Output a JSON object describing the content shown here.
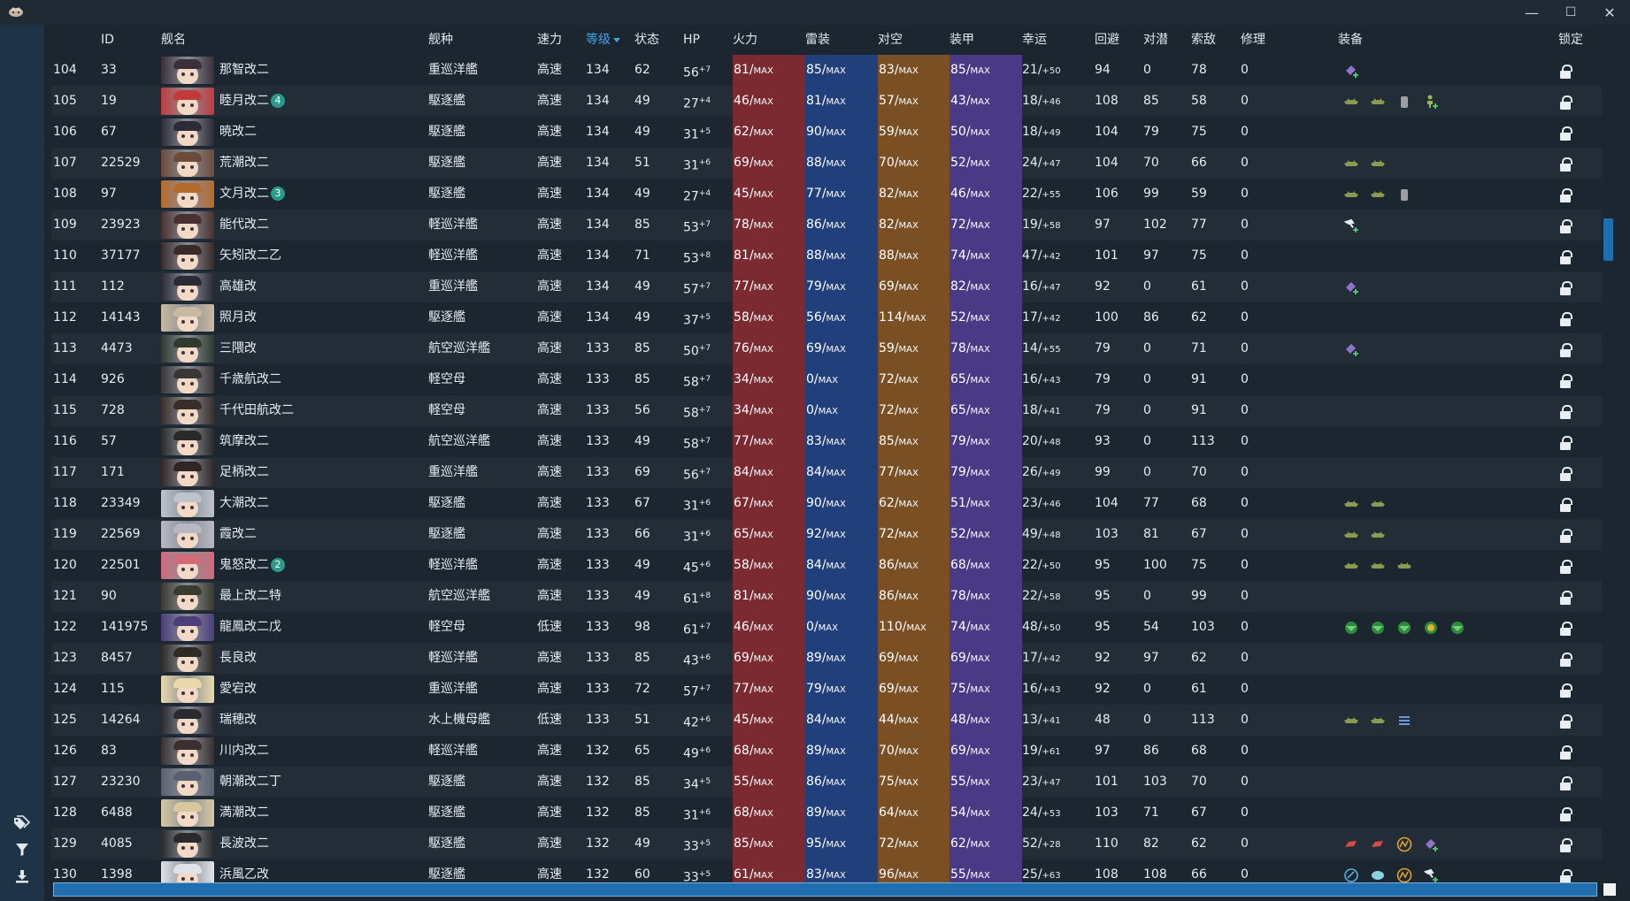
{
  "window": {
    "minimize": "—",
    "maximize": "☐",
    "close": "✕"
  },
  "sidebar": {
    "icons": [
      "tag-icon",
      "filter-icon",
      "download-icon"
    ]
  },
  "headers": [
    "",
    "ID",
    "舰名",
    "舰种",
    "速力",
    "等级",
    "状态",
    "HP",
    "火力",
    "雷装",
    "对空",
    "装甲",
    "幸运",
    "回避",
    "对潜",
    "索敌",
    "修理",
    "装备",
    "锁定"
  ],
  "sorted_column": "等级",
  "colors": {
    "firepower": "#7b2a31",
    "torpedo": "#213f7a",
    "aa": "#7a4f23",
    "armor": "#4a3a86",
    "accent": "#3fa4e8",
    "equip_green": "#8a9a4e",
    "equip_purple": "#8f72c9"
  },
  "rows": [
    {
      "no": "104",
      "id": "33",
      "name": "那智改二",
      "mark": "",
      "type": "重巡洋艦",
      "speed": "高速",
      "lv": "134",
      "cond": "62",
      "hp": "56",
      "hp_plus": "+7",
      "fp": "81",
      "tp": "85",
      "aa": "83",
      "ar": "85",
      "luck": "21",
      "luck_plus": "+50",
      "ev": "94",
      "asw": "0",
      "los": "78",
      "rep": "0",
      "equip": [
        "purple"
      ]
    },
    {
      "no": "105",
      "id": "19",
      "name": "睦月改二",
      "mark": "4",
      "type": "駆逐艦",
      "speed": "高速",
      "lv": "134",
      "cond": "49",
      "hp": "27",
      "hp_plus": "+4",
      "fp": "46",
      "tp": "81",
      "aa": "57",
      "ar": "43",
      "luck": "18",
      "luck_plus": "+46",
      "ev": "108",
      "asw": "85",
      "los": "58",
      "rep": "0",
      "equip": [
        "green",
        "green",
        "drum",
        "person"
      ]
    },
    {
      "no": "106",
      "id": "67",
      "name": "暁改二",
      "mark": "",
      "type": "駆逐艦",
      "speed": "高速",
      "lv": "134",
      "cond": "49",
      "hp": "31",
      "hp_plus": "+5",
      "fp": "62",
      "tp": "90",
      "aa": "59",
      "ar": "50",
      "luck": "18",
      "luck_plus": "+49",
      "ev": "104",
      "asw": "79",
      "los": "75",
      "rep": "0",
      "equip": []
    },
    {
      "no": "107",
      "id": "22529",
      "name": "荒潮改二",
      "mark": "",
      "type": "駆逐艦",
      "speed": "高速",
      "lv": "134",
      "cond": "51",
      "hp": "31",
      "hp_plus": "+6",
      "fp": "69",
      "tp": "88",
      "aa": "70",
      "ar": "52",
      "luck": "24",
      "luck_plus": "+47",
      "ev": "104",
      "asw": "70",
      "los": "66",
      "rep": "0",
      "equip": [
        "green",
        "green"
      ]
    },
    {
      "no": "108",
      "id": "97",
      "name": "文月改二",
      "mark": "3",
      "type": "駆逐艦",
      "speed": "高速",
      "lv": "134",
      "cond": "49",
      "hp": "27",
      "hp_plus": "+4",
      "fp": "45",
      "tp": "77",
      "aa": "82",
      "ar": "46",
      "luck": "22",
      "luck_plus": "+55",
      "ev": "106",
      "asw": "99",
      "los": "59",
      "rep": "0",
      "equip": [
        "green",
        "green",
        "drum"
      ]
    },
    {
      "no": "109",
      "id": "23923",
      "name": "能代改二",
      "mark": "",
      "type": "軽巡洋艦",
      "speed": "高速",
      "lv": "134",
      "cond": "85",
      "hp": "53",
      "hp_plus": "+7",
      "fp": "78",
      "tp": "86",
      "aa": "82",
      "ar": "72",
      "luck": "19",
      "luck_plus": "+58",
      "ev": "97",
      "asw": "102",
      "los": "77",
      "rep": "0",
      "equip": [
        "hammer"
      ]
    },
    {
      "no": "110",
      "id": "37177",
      "name": "矢矧改二乙",
      "mark": "",
      "type": "軽巡洋艦",
      "speed": "高速",
      "lv": "134",
      "cond": "71",
      "hp": "53",
      "hp_plus": "+8",
      "fp": "81",
      "tp": "88",
      "aa": "88",
      "ar": "74",
      "luck": "47",
      "luck_plus": "+42",
      "ev": "101",
      "asw": "97",
      "los": "75",
      "rep": "0",
      "equip": []
    },
    {
      "no": "111",
      "id": "112",
      "name": "高雄改",
      "mark": "",
      "type": "重巡洋艦",
      "speed": "高速",
      "lv": "134",
      "cond": "49",
      "hp": "57",
      "hp_plus": "+7",
      "fp": "77",
      "tp": "79",
      "aa": "69",
      "ar": "82",
      "luck": "16",
      "luck_plus": "+47",
      "ev": "92",
      "asw": "0",
      "los": "61",
      "rep": "0",
      "equip": [
        "purple"
      ]
    },
    {
      "no": "112",
      "id": "14143",
      "name": "照月改",
      "mark": "",
      "type": "駆逐艦",
      "speed": "高速",
      "lv": "134",
      "cond": "49",
      "hp": "37",
      "hp_plus": "+5",
      "fp": "58",
      "tp": "56",
      "aa": "114",
      "ar": "52",
      "luck": "17",
      "luck_plus": "+42",
      "ev": "100",
      "asw": "86",
      "los": "62",
      "rep": "0",
      "equip": []
    },
    {
      "no": "113",
      "id": "4473",
      "name": "三隈改",
      "mark": "",
      "type": "航空巡洋艦",
      "speed": "高速",
      "lv": "133",
      "cond": "85",
      "hp": "50",
      "hp_plus": "+7",
      "fp": "76",
      "tp": "69",
      "aa": "59",
      "ar": "78",
      "luck": "14",
      "luck_plus": "+55",
      "ev": "79",
      "asw": "0",
      "los": "71",
      "rep": "0",
      "equip": [
        "purple"
      ]
    },
    {
      "no": "114",
      "id": "926",
      "name": "千歳航改二",
      "mark": "",
      "type": "軽空母",
      "speed": "高速",
      "lv": "133",
      "cond": "85",
      "hp": "58",
      "hp_plus": "+7",
      "fp": "34",
      "tp": "0",
      "aa": "72",
      "ar": "65",
      "luck": "16",
      "luck_plus": "+43",
      "ev": "79",
      "asw": "0",
      "los": "91",
      "rep": "0",
      "equip": []
    },
    {
      "no": "115",
      "id": "728",
      "name": "千代田航改二",
      "mark": "",
      "type": "軽空母",
      "speed": "高速",
      "lv": "133",
      "cond": "56",
      "hp": "58",
      "hp_plus": "+7",
      "fp": "34",
      "tp": "0",
      "aa": "72",
      "ar": "65",
      "luck": "18",
      "luck_plus": "+41",
      "ev": "79",
      "asw": "0",
      "los": "91",
      "rep": "0",
      "equip": []
    },
    {
      "no": "116",
      "id": "57",
      "name": "筑摩改二",
      "mark": "",
      "type": "航空巡洋艦",
      "speed": "高速",
      "lv": "133",
      "cond": "49",
      "hp": "58",
      "hp_plus": "+7",
      "fp": "77",
      "tp": "83",
      "aa": "85",
      "ar": "79",
      "luck": "20",
      "luck_plus": "+48",
      "ev": "93",
      "asw": "0",
      "los": "113",
      "rep": "0",
      "equip": []
    },
    {
      "no": "117",
      "id": "171",
      "name": "足柄改二",
      "mark": "",
      "type": "重巡洋艦",
      "speed": "高速",
      "lv": "133",
      "cond": "69",
      "hp": "56",
      "hp_plus": "+7",
      "fp": "84",
      "tp": "84",
      "aa": "77",
      "ar": "79",
      "luck": "26",
      "luck_plus": "+49",
      "ev": "99",
      "asw": "0",
      "los": "70",
      "rep": "0",
      "equip": []
    },
    {
      "no": "118",
      "id": "23349",
      "name": "大潮改二",
      "mark": "",
      "type": "駆逐艦",
      "speed": "高速",
      "lv": "133",
      "cond": "67",
      "hp": "31",
      "hp_plus": "+6",
      "fp": "67",
      "tp": "90",
      "aa": "62",
      "ar": "51",
      "luck": "23",
      "luck_plus": "+46",
      "ev": "104",
      "asw": "77",
      "los": "68",
      "rep": "0",
      "equip": [
        "green",
        "green"
      ]
    },
    {
      "no": "119",
      "id": "22569",
      "name": "霞改二",
      "mark": "",
      "type": "駆逐艦",
      "speed": "高速",
      "lv": "133",
      "cond": "66",
      "hp": "31",
      "hp_plus": "+6",
      "fp": "65",
      "tp": "92",
      "aa": "72",
      "ar": "52",
      "luck": "49",
      "luck_plus": "+48",
      "ev": "103",
      "asw": "81",
      "los": "67",
      "rep": "0",
      "equip": [
        "green",
        "green"
      ]
    },
    {
      "no": "120",
      "id": "22501",
      "name": "鬼怒改二",
      "mark": "2",
      "type": "軽巡洋艦",
      "speed": "高速",
      "lv": "133",
      "cond": "49",
      "hp": "45",
      "hp_plus": "+6",
      "fp": "58",
      "tp": "84",
      "aa": "86",
      "ar": "68",
      "luck": "22",
      "luck_plus": "+50",
      "ev": "95",
      "asw": "100",
      "los": "75",
      "rep": "0",
      "equip": [
        "green",
        "green",
        "green"
      ]
    },
    {
      "no": "121",
      "id": "90",
      "name": "最上改二特",
      "mark": "",
      "type": "航空巡洋艦",
      "speed": "高速",
      "lv": "133",
      "cond": "49",
      "hp": "61",
      "hp_plus": "+8",
      "fp": "81",
      "tp": "90",
      "aa": "86",
      "ar": "78",
      "luck": "22",
      "luck_plus": "+58",
      "ev": "95",
      "asw": "0",
      "los": "99",
      "rep": "0",
      "equip": []
    },
    {
      "no": "122",
      "id": "141975",
      "name": "龍鳳改二戊",
      "mark": "",
      "type": "軽空母",
      "speed": "低速",
      "lv": "133",
      "cond": "98",
      "hp": "61",
      "hp_plus": "+7",
      "fp": "46",
      "tp": "0",
      "aa": "110",
      "ar": "74",
      "luck": "48",
      "luck_plus": "+50",
      "ev": "95",
      "asw": "54",
      "los": "103",
      "rep": "0",
      "equip": [
        "plane",
        "plane",
        "plane",
        "plane-y",
        "plane"
      ]
    },
    {
      "no": "123",
      "id": "8457",
      "name": "長良改",
      "mark": "",
      "type": "軽巡洋艦",
      "speed": "高速",
      "lv": "133",
      "cond": "85",
      "hp": "43",
      "hp_plus": "+6",
      "fp": "69",
      "tp": "89",
      "aa": "69",
      "ar": "69",
      "luck": "17",
      "luck_plus": "+42",
      "ev": "92",
      "asw": "97",
      "los": "62",
      "rep": "0",
      "equip": []
    },
    {
      "no": "124",
      "id": "115",
      "name": "愛宕改",
      "mark": "",
      "type": "重巡洋艦",
      "speed": "高速",
      "lv": "133",
      "cond": "72",
      "hp": "57",
      "hp_plus": "+7",
      "fp": "77",
      "tp": "79",
      "aa": "69",
      "ar": "75",
      "luck": "16",
      "luck_plus": "+43",
      "ev": "92",
      "asw": "0",
      "los": "61",
      "rep": "0",
      "equip": []
    },
    {
      "no": "125",
      "id": "14264",
      "name": "瑞穂改",
      "mark": "",
      "type": "水上機母艦",
      "speed": "低速",
      "lv": "133",
      "cond": "51",
      "hp": "42",
      "hp_plus": "+6",
      "fp": "45",
      "tp": "84",
      "aa": "44",
      "ar": "48",
      "luck": "13",
      "luck_plus": "+41",
      "ev": "48",
      "asw": "0",
      "los": "113",
      "rep": "0",
      "equip": [
        "green",
        "green",
        "lines"
      ]
    },
    {
      "no": "126",
      "id": "83",
      "name": "川内改二",
      "mark": "",
      "type": "軽巡洋艦",
      "speed": "高速",
      "lv": "132",
      "cond": "65",
      "hp": "49",
      "hp_plus": "+6",
      "fp": "68",
      "tp": "89",
      "aa": "70",
      "ar": "69",
      "luck": "19",
      "luck_plus": "+61",
      "ev": "97",
      "asw": "86",
      "los": "68",
      "rep": "0",
      "equip": []
    },
    {
      "no": "127",
      "id": "23230",
      "name": "朝潮改二丁",
      "mark": "",
      "type": "駆逐艦",
      "speed": "高速",
      "lv": "132",
      "cond": "85",
      "hp": "34",
      "hp_plus": "+5",
      "fp": "55",
      "tp": "86",
      "aa": "75",
      "ar": "55",
      "luck": "23",
      "luck_plus": "+47",
      "ev": "101",
      "asw": "103",
      "los": "70",
      "rep": "0",
      "equip": []
    },
    {
      "no": "128",
      "id": "6488",
      "name": "満潮改二",
      "mark": "",
      "type": "駆逐艦",
      "speed": "高速",
      "lv": "132",
      "cond": "85",
      "hp": "31",
      "hp_plus": "+6",
      "fp": "68",
      "tp": "89",
      "aa": "64",
      "ar": "54",
      "luck": "24",
      "luck_plus": "+53",
      "ev": "103",
      "asw": "71",
      "los": "67",
      "rep": "0",
      "equip": []
    },
    {
      "no": "129",
      "id": "4085",
      "name": "長波改二",
      "mark": "",
      "type": "駆逐艦",
      "speed": "高速",
      "lv": "132",
      "cond": "49",
      "hp": "33",
      "hp_plus": "+5",
      "fp": "85",
      "tp": "95",
      "aa": "72",
      "ar": "62",
      "luck": "52",
      "luck_plus": "+28",
      "ev": "110",
      "asw": "82",
      "los": "62",
      "rep": "0",
      "equip": [
        "red",
        "red",
        "radar",
        "purple"
      ]
    },
    {
      "no": "130",
      "id": "1398",
      "name": "浜風乙改",
      "mark": "",
      "type": "駆逐艦",
      "speed": "高速",
      "lv": "132",
      "cond": "60",
      "hp": "33",
      "hp_plus": "+5",
      "fp": "61",
      "tp": "83",
      "aa": "96",
      "ar": "55",
      "luck": "25",
      "luck_plus": "+63",
      "ev": "108",
      "asw": "108",
      "los": "66",
      "rep": "0",
      "equip": [
        "sonar",
        "depth",
        "radar",
        "hammer"
      ]
    }
  ],
  "max_label": "MAX"
}
